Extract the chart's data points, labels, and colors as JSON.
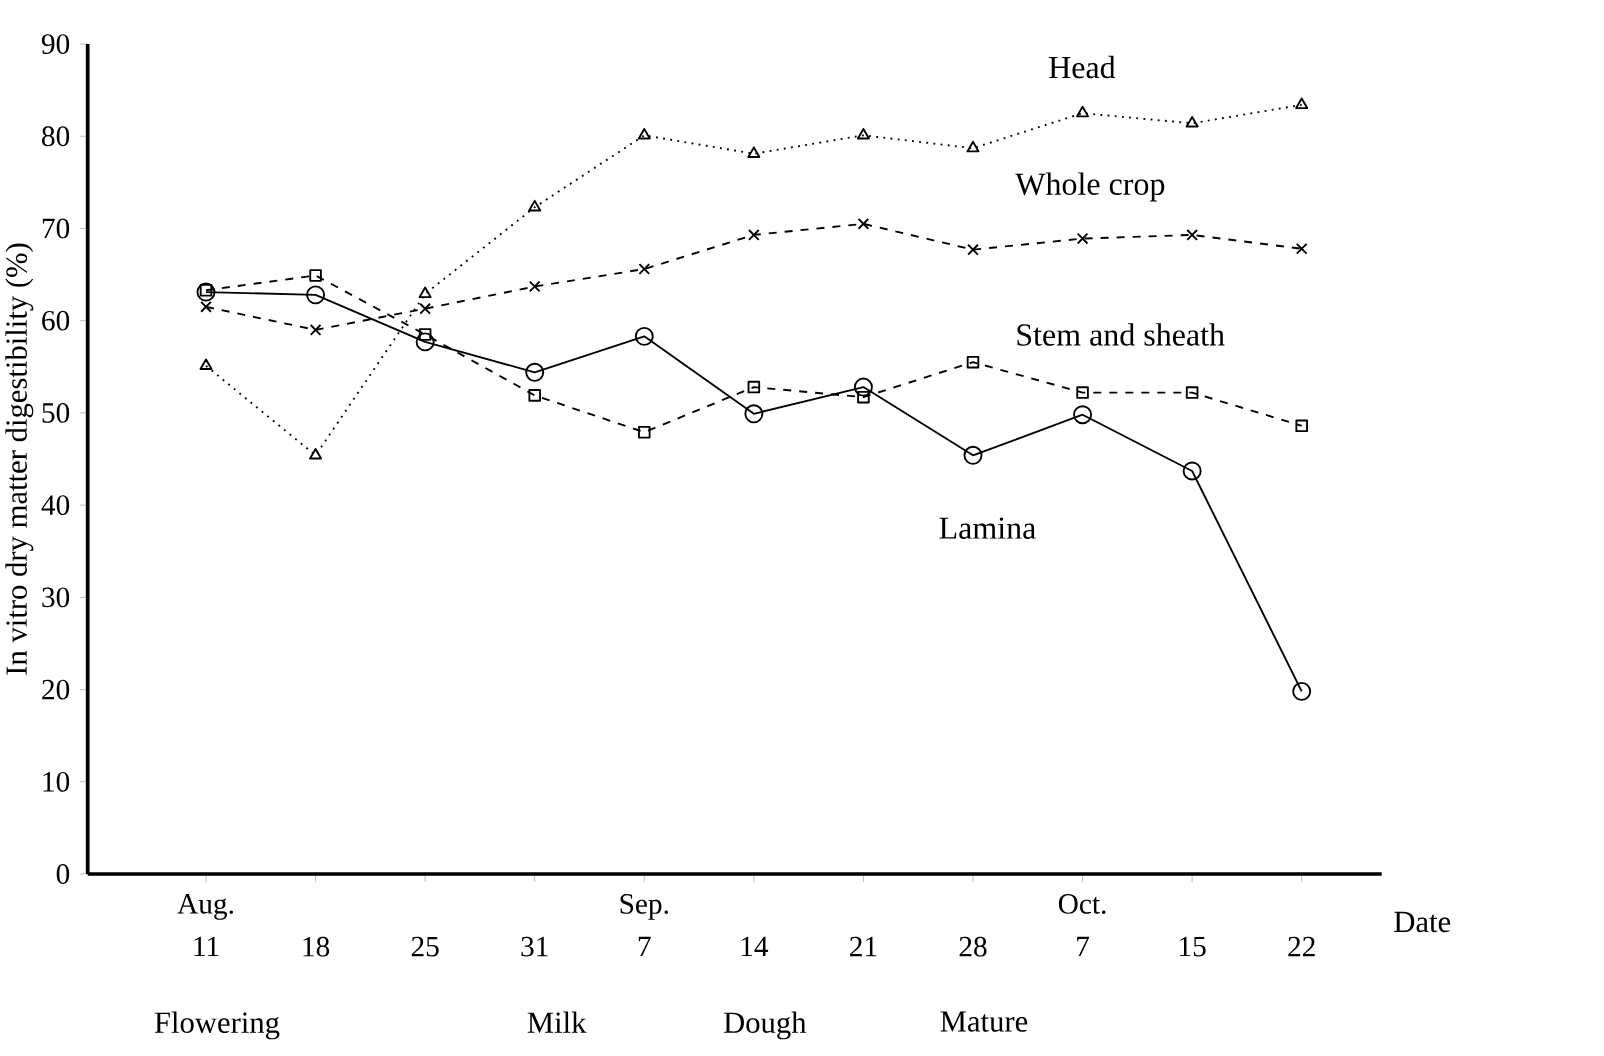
{
  "chart_data": {
    "type": "line",
    "xlabel": "Date",
    "ylabel": "In vitro dry matter digestibility (%)",
    "categories": [
      "11",
      "18",
      "25",
      "31",
      "7",
      "14",
      "21",
      "28",
      "7",
      "15",
      "22"
    ],
    "series": [
      {
        "name": "Head",
        "color": "#000000",
        "marker": "triangle",
        "line_style": "dotted",
        "values": [
          55.1,
          45.4,
          62.9,
          72.3,
          80.1,
          78.1,
          80.1,
          78.7,
          82.5,
          81.4,
          83.4
        ]
      },
      {
        "name": "Whole crop",
        "color": "#000000",
        "marker": "cross",
        "line_style": "dashed",
        "values": [
          61.5,
          59.0,
          61.3,
          63.7,
          65.6,
          69.3,
          70.5,
          67.7,
          68.9,
          69.3,
          67.8
        ]
      },
      {
        "name": "Stem and sheath",
        "color": "#000000",
        "marker": "square",
        "line_style": "dashed",
        "values": [
          63.3,
          64.9,
          58.5,
          51.9,
          47.9,
          52.8,
          51.7,
          55.5,
          52.2,
          52.2,
          48.6
        ]
      },
      {
        "name": "Lamina",
        "color": "#000000",
        "marker": "circle",
        "line_style": "solid",
        "values": [
          63.1,
          62.8,
          57.7,
          54.4,
          58.3,
          49.9,
          52.8,
          45.4,
          49.8,
          43.7,
          19.8
        ]
      }
    ],
    "ylim": [
      0,
      90
    ],
    "yticks": [
      0,
      10,
      20,
      30,
      40,
      50,
      60,
      70,
      80,
      90
    ],
    "grid": false,
    "legend": false,
    "annotations": [
      "Aug.",
      "Sep.",
      "Oct.",
      "Flowering",
      "Milk",
      "Dough",
      "Mature"
    ]
  }
}
